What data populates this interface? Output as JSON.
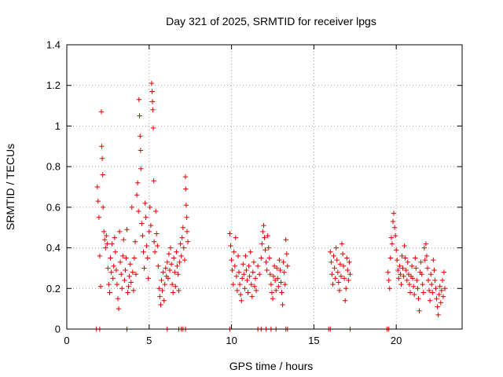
{
  "chart_data": {
    "type": "scatter",
    "title": "Day 321 of 2025, SRMTID for receiver lpgs",
    "xlabel": "GPS time / hours",
    "ylabel": "SRMTID / TECUs",
    "xlim": [
      0,
      24
    ],
    "ylim": [
      0,
      1.4
    ],
    "xticks": [
      0,
      5,
      10,
      15,
      20
    ],
    "yticks": [
      0,
      0.2,
      0.4,
      0.6,
      0.8,
      1,
      1.2,
      1.4
    ],
    "xtick_labels": [
      "0",
      "5",
      "10",
      "15",
      "20"
    ],
    "ytick_labels": [
      "0",
      "0.2",
      "0.4",
      "0.6",
      "0.8",
      "1",
      "1.2",
      "1.4"
    ],
    "grid": true,
    "marker": "+",
    "color": "#e00000",
    "series": [
      {
        "name": "SRMTID",
        "points": [
          [
            1.85,
            0.7
          ],
          [
            1.9,
            0.63
          ],
          [
            1.95,
            0.55
          ],
          [
            2.0,
            0.36
          ],
          [
            2.05,
            0.21
          ],
          [
            2.1,
            1.07
          ],
          [
            2.12,
            0.9
          ],
          [
            2.15,
            0.84
          ],
          [
            2.18,
            0.76
          ],
          [
            2.2,
            0.6
          ],
          [
            2.25,
            0.48
          ],
          [
            2.3,
            0.44
          ],
          [
            2.35,
            0.4
          ],
          [
            2.4,
            0.46
          ],
          [
            2.45,
            0.42
          ],
          [
            2.5,
            0.3
          ],
          [
            2.55,
            0.22
          ],
          [
            2.6,
            0.18
          ],
          [
            2.65,
            0.35
          ],
          [
            2.7,
            0.28
          ],
          [
            2.75,
            0.42
          ],
          [
            2.8,
            0.25
          ],
          [
            2.85,
            0.31
          ],
          [
            2.9,
            0.45
          ],
          [
            2.95,
            0.38
          ],
          [
            3.0,
            0.29
          ],
          [
            3.05,
            0.22
          ],
          [
            3.1,
            0.15
          ],
          [
            3.15,
            0.1
          ],
          [
            3.2,
            0.48
          ],
          [
            3.25,
            0.33
          ],
          [
            3.3,
            0.27
          ],
          [
            3.35,
            0.2
          ],
          [
            3.4,
            0.36
          ],
          [
            3.45,
            0.44
          ],
          [
            3.5,
            0.24
          ],
          [
            3.55,
            0.29
          ],
          [
            3.6,
            0.35
          ],
          [
            3.65,
            0.49
          ],
          [
            3.7,
            0.18
          ],
          [
            3.75,
            0.21
          ],
          [
            3.8,
            0.26
          ],
          [
            3.85,
            0.32
          ],
          [
            3.9,
            0.23
          ],
          [
            3.95,
            0.6
          ],
          [
            4.0,
            0.28
          ],
          [
            4.05,
            0.19
          ],
          [
            4.1,
            0.35
          ],
          [
            4.15,
            0.43
          ],
          [
            4.2,
            0.27
          ],
          [
            4.25,
            0.66
          ],
          [
            4.3,
            0.72
          ],
          [
            4.35,
            0.58
          ],
          [
            4.38,
            1.13
          ],
          [
            4.42,
            1.05
          ],
          [
            4.45,
            0.95
          ],
          [
            4.48,
            0.88
          ],
          [
            4.5,
            0.79
          ],
          [
            4.55,
            0.52
          ],
          [
            4.6,
            0.46
          ],
          [
            4.65,
            0.38
          ],
          [
            4.7,
            0.3
          ],
          [
            4.75,
            0.62
          ],
          [
            4.8,
            0.55
          ],
          [
            4.85,
            0.41
          ],
          [
            4.9,
            0.35
          ],
          [
            4.95,
            0.25
          ],
          [
            5.0,
            0.48
          ],
          [
            5.05,
            0.6
          ],
          [
            5.1,
            0.51
          ],
          [
            5.15,
            1.21
          ],
          [
            5.18,
            1.17
          ],
          [
            5.2,
            1.12
          ],
          [
            5.22,
            1.08
          ],
          [
            5.25,
            0.99
          ],
          [
            5.28,
            0.73
          ],
          [
            5.3,
            0.43
          ],
          [
            5.35,
            0.38
          ],
          [
            5.4,
            0.58
          ],
          [
            5.45,
            0.47
          ],
          [
            5.5,
            0.41
          ],
          [
            5.55,
            0.31
          ],
          [
            5.6,
            0.2
          ],
          [
            5.65,
            0.16
          ],
          [
            5.7,
            0.12
          ],
          [
            5.75,
            0.24
          ],
          [
            5.8,
            0.19
          ],
          [
            5.85,
            0.28
          ],
          [
            5.9,
            0.14
          ],
          [
            5.95,
            0.22
          ],
          [
            6.0,
            0.3
          ],
          [
            6.05,
            0.26
          ],
          [
            6.1,
            0.33
          ],
          [
            6.15,
            0.25
          ],
          [
            6.2,
            0.37
          ],
          [
            6.25,
            0.29
          ],
          [
            6.3,
            0.4
          ],
          [
            6.35,
            0.32
          ],
          [
            6.4,
            0.22
          ],
          [
            6.45,
            0.18
          ],
          [
            6.5,
            0.35
          ],
          [
            6.55,
            0.28
          ],
          [
            6.6,
            0.21
          ],
          [
            6.65,
            0.38
          ],
          [
            6.7,
            0.31
          ],
          [
            6.75,
            0.27
          ],
          [
            6.8,
            0.19
          ],
          [
            6.85,
            0.33
          ],
          [
            6.9,
            0.42
          ],
          [
            6.95,
            0.36
          ],
          [
            7.0,
            0.45
          ],
          [
            7.05,
            0.5
          ],
          [
            7.1,
            0.4
          ],
          [
            7.15,
            0.34
          ],
          [
            7.2,
            0.75
          ],
          [
            7.22,
            0.69
          ],
          [
            7.25,
            0.61
          ],
          [
            7.28,
            0.55
          ],
          [
            7.3,
            0.48
          ],
          [
            7.35,
            0.43
          ],
          [
            9.9,
            0.47
          ],
          [
            9.95,
            0.41
          ],
          [
            10.0,
            0.34
          ],
          [
            10.05,
            0.29
          ],
          [
            10.1,
            0.22
          ],
          [
            10.15,
            0.38
          ],
          [
            10.2,
            0.31
          ],
          [
            10.25,
            0.45
          ],
          [
            10.3,
            0.26
          ],
          [
            10.35,
            0.19
          ],
          [
            10.4,
            0.36
          ],
          [
            10.45,
            0.28
          ],
          [
            10.5,
            0.22
          ],
          [
            10.55,
            0.17
          ],
          [
            10.6,
            0.14
          ],
          [
            10.65,
            0.25
          ],
          [
            10.7,
            0.32
          ],
          [
            10.75,
            0.27
          ],
          [
            10.8,
            0.2
          ],
          [
            10.85,
            0.36
          ],
          [
            10.9,
            0.29
          ],
          [
            10.95,
            0.24
          ],
          [
            11.0,
            0.18
          ],
          [
            11.05,
            0.31
          ],
          [
            11.1,
            0.26
          ],
          [
            11.15,
            0.38
          ],
          [
            11.2,
            0.22
          ],
          [
            11.25,
            0.16
          ],
          [
            11.3,
            0.28
          ],
          [
            11.35,
            0.33
          ],
          [
            11.4,
            0.21
          ],
          [
            11.45,
            0.25
          ],
          [
            11.5,
            0.19
          ],
          [
            11.6,
            0.31
          ],
          [
            11.7,
            0.27
          ],
          [
            11.8,
            0.35
          ],
          [
            11.85,
            0.42
          ],
          [
            11.9,
            0.48
          ],
          [
            11.95,
            0.51
          ],
          [
            12.0,
            0.45
          ],
          [
            12.05,
            0.39
          ],
          [
            12.1,
            0.33
          ],
          [
            12.15,
            0.29
          ],
          [
            12.2,
            0.46
          ],
          [
            12.25,
            0.4
          ],
          [
            12.3,
            0.35
          ],
          [
            12.35,
            0.27
          ],
          [
            12.4,
            0.22
          ],
          [
            12.45,
            0.18
          ],
          [
            12.5,
            0.15
          ],
          [
            12.55,
            0.26
          ],
          [
            12.6,
            0.31
          ],
          [
            12.65,
            0.24
          ],
          [
            12.7,
            0.19
          ],
          [
            12.75,
            0.3
          ],
          [
            12.8,
            0.25
          ],
          [
            12.85,
            0.21
          ],
          [
            12.9,
            0.34
          ],
          [
            12.95,
            0.29
          ],
          [
            13.0,
            0.23
          ],
          [
            13.05,
            0.18
          ],
          [
            13.1,
            0.12
          ],
          [
            13.15,
            0.33
          ],
          [
            13.2,
            0.28
          ],
          [
            13.25,
            0.22
          ],
          [
            13.3,
            0.44
          ],
          [
            13.35,
            0.37
          ],
          [
            13.4,
            0.31
          ],
          [
            16.0,
            0.38
          ],
          [
            16.05,
            0.33
          ],
          [
            16.1,
            0.27
          ],
          [
            16.15,
            0.22
          ],
          [
            16.2,
            0.36
          ],
          [
            16.25,
            0.3
          ],
          [
            16.3,
            0.25
          ],
          [
            16.35,
            0.4
          ],
          [
            16.4,
            0.34
          ],
          [
            16.45,
            0.28
          ],
          [
            16.5,
            0.23
          ],
          [
            16.55,
            0.19
          ],
          [
            16.6,
            0.32
          ],
          [
            16.65,
            0.26
          ],
          [
            16.7,
            0.42
          ],
          [
            16.75,
            0.37
          ],
          [
            16.8,
            0.31
          ],
          [
            16.85,
            0.25
          ],
          [
            16.9,
            0.14
          ],
          [
            16.95,
            0.2
          ],
          [
            17.0,
            0.35
          ],
          [
            17.05,
            0.29
          ],
          [
            17.1,
            0.24
          ],
          [
            17.15,
            0.33
          ],
          [
            17.2,
            0.27
          ],
          [
            19.5,
            0.28
          ],
          [
            19.55,
            0.24
          ],
          [
            19.6,
            0.2
          ],
          [
            19.65,
            0.35
          ],
          [
            19.7,
            0.45
          ],
          [
            19.75,
            0.42
          ],
          [
            19.8,
            0.53
          ],
          [
            19.85,
            0.57
          ],
          [
            19.9,
            0.5
          ],
          [
            19.95,
            0.46
          ],
          [
            20.0,
            0.39
          ],
          [
            20.05,
            0.34
          ],
          [
            20.1,
            0.29
          ],
          [
            20.15,
            0.25
          ],
          [
            20.2,
            0.31
          ],
          [
            20.25,
            0.27
          ],
          [
            20.3,
            0.22
          ],
          [
            20.35,
            0.36
          ],
          [
            20.4,
            0.3
          ],
          [
            20.45,
            0.26
          ],
          [
            20.5,
            0.41
          ],
          [
            20.55,
            0.35
          ],
          [
            20.6,
            0.29
          ],
          [
            20.65,
            0.24
          ],
          [
            20.7,
            0.33
          ],
          [
            20.75,
            0.27
          ],
          [
            20.8,
            0.22
          ],
          [
            20.85,
            0.18
          ],
          [
            20.9,
            0.26
          ],
          [
            20.95,
            0.31
          ],
          [
            21.0,
            0.25
          ],
          [
            21.05,
            0.21
          ],
          [
            21.1,
            0.17
          ],
          [
            21.15,
            0.35
          ],
          [
            21.2,
            0.3
          ],
          [
            21.25,
            0.24
          ],
          [
            21.3,
            0.2
          ],
          [
            21.35,
            0.15
          ],
          [
            21.4,
            0.09
          ],
          [
            21.45,
            0.28
          ],
          [
            21.5,
            0.33
          ],
          [
            21.55,
            0.27
          ],
          [
            21.6,
            0.22
          ],
          [
            21.65,
            0.18
          ],
          [
            21.7,
            0.4
          ],
          [
            21.75,
            0.34
          ],
          [
            21.8,
            0.42
          ],
          [
            21.85,
            0.36
          ],
          [
            21.9,
            0.3
          ],
          [
            21.95,
            0.24
          ],
          [
            22.0,
            0.19
          ],
          [
            22.05,
            0.14
          ],
          [
            22.1,
            0.27
          ],
          [
            22.15,
            0.22
          ],
          [
            22.2,
            0.18
          ],
          [
            22.25,
            0.34
          ],
          [
            22.3,
            0.29
          ],
          [
            22.35,
            0.24
          ],
          [
            22.4,
            0.2
          ],
          [
            22.45,
            0.15
          ],
          [
            22.5,
            0.11
          ],
          [
            22.55,
            0.07
          ],
          [
            22.6,
            0.17
          ],
          [
            22.65,
            0.21
          ],
          [
            22.7,
            0.13
          ],
          [
            22.75,
            0.19
          ],
          [
            22.8,
            0.24
          ],
          [
            22.85,
            0.16
          ],
          [
            22.9,
            0.28
          ],
          [
            22.95,
            0.2
          ],
          [
            1.8,
            0.0
          ],
          [
            2.0,
            0.0
          ],
          [
            3.65,
            0.0
          ],
          [
            6.1,
            0.0
          ],
          [
            6.8,
            0.0
          ],
          [
            6.95,
            0.0
          ],
          [
            7.05,
            0.0
          ],
          [
            7.2,
            0.0
          ],
          [
            9.9,
            0.0
          ],
          [
            11.6,
            0.0
          ],
          [
            11.8,
            0.0
          ],
          [
            12.1,
            0.0
          ],
          [
            12.4,
            0.0
          ],
          [
            12.7,
            0.0
          ],
          [
            13.3,
            0.0
          ],
          [
            13.4,
            0.0
          ],
          [
            15.9,
            0.0
          ],
          [
            16.0,
            0.0
          ],
          [
            17.2,
            0.0
          ],
          [
            19.45,
            0.0
          ],
          [
            19.55,
            0.0
          ]
        ]
      }
    ]
  }
}
